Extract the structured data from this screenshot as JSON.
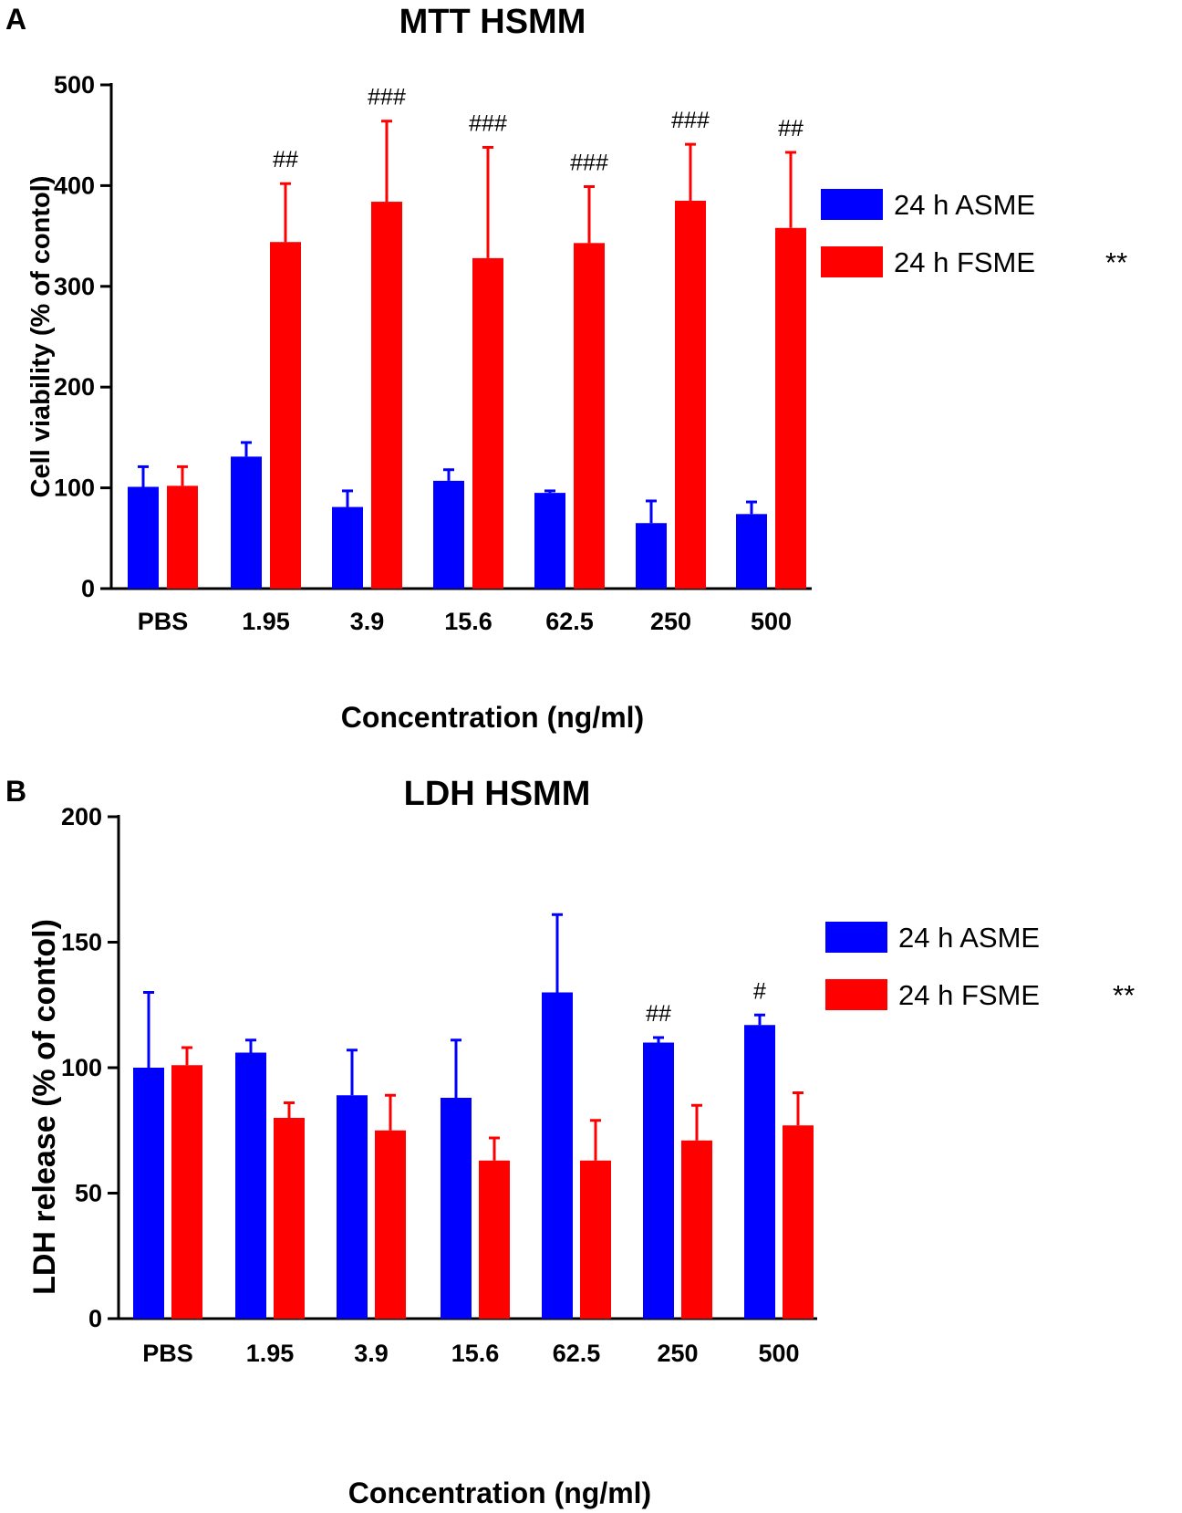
{
  "chart_data": [
    {
      "panel": "A",
      "type": "bar",
      "title": "MTT HSMM",
      "xlabel": "Concentration (ng/ml)",
      "ylabel": "Cell viability (% of contol)",
      "ylim": [
        0,
        500
      ],
      "yticks": [
        0,
        100,
        200,
        300,
        400,
        500
      ],
      "categories": [
        "PBS",
        "1.95",
        "3.9",
        "15.6",
        "62.5",
        "250",
        "500"
      ],
      "series": [
        {
          "name": "24 h ASME",
          "color": "#0000ff",
          "values": [
            101,
            131,
            81,
            107,
            95,
            65,
            74
          ],
          "errors": [
            20,
            14,
            16,
            11,
            2,
            22,
            12
          ]
        },
        {
          "name": "24 h FSME",
          "color": "#ff0000",
          "legend_suffix": "**",
          "values": [
            102,
            344,
            384,
            328,
            343,
            385,
            358
          ],
          "errors": [
            19,
            58,
            80,
            110,
            56,
            56,
            75
          ]
        }
      ],
      "annotations": [
        {
          "category": "1.95",
          "series": "24 h FSME",
          "text": "##"
        },
        {
          "category": "3.9",
          "series": "24 h FSME",
          "text": "###"
        },
        {
          "category": "15.6",
          "series": "24 h FSME",
          "text": "###"
        },
        {
          "category": "62.5",
          "series": "24 h FSME",
          "text": "###"
        },
        {
          "category": "250",
          "series": "24 h FSME",
          "text": "###"
        },
        {
          "category": "500",
          "series": "24 h FSME",
          "text": "##"
        }
      ],
      "legend_position": "right"
    },
    {
      "panel": "B",
      "type": "bar",
      "title": "LDH HSMM",
      "xlabel": "Concentration (ng/ml)",
      "ylabel": "LDH release (% of contol)",
      "ylim": [
        0,
        200
      ],
      "yticks": [
        0,
        50,
        100,
        150,
        200
      ],
      "categories": [
        "PBS",
        "1.95",
        "3.9",
        "15.6",
        "62.5",
        "250",
        "500"
      ],
      "series": [
        {
          "name": "24 h ASME",
          "color": "#0000ff",
          "values": [
            100,
            106,
            89,
            88,
            130,
            110,
            117
          ],
          "errors": [
            30,
            5,
            18,
            23,
            31,
            2,
            4
          ]
        },
        {
          "name": "24 h FSME",
          "color": "#ff0000",
          "legend_suffix": "**",
          "values": [
            101,
            80,
            75,
            63,
            63,
            71,
            77
          ],
          "errors": [
            7,
            6,
            14,
            9,
            16,
            14,
            13
          ]
        }
      ],
      "annotations": [
        {
          "category": "250",
          "series": "24 h ASME",
          "text": "##"
        },
        {
          "category": "500",
          "series": "24 h ASME",
          "text": "#"
        }
      ],
      "legend_position": "right"
    }
  ]
}
